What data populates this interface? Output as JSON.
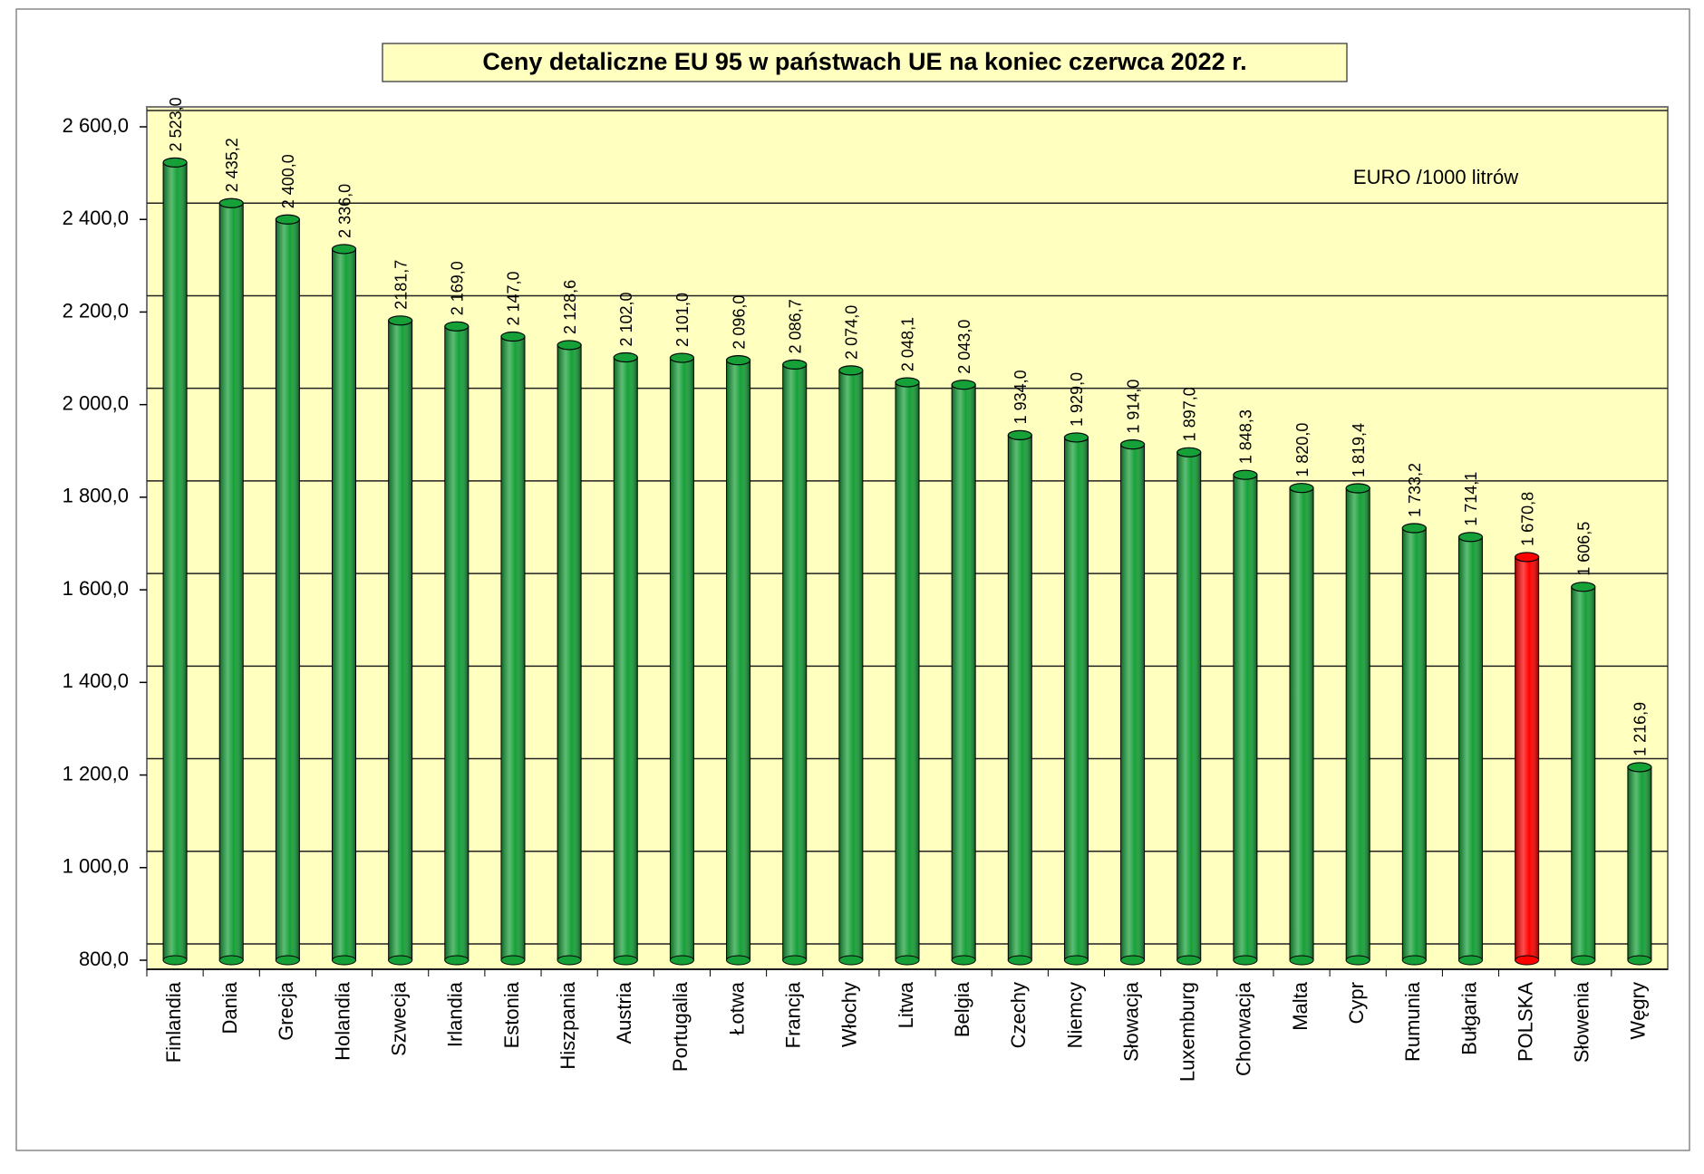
{
  "chart_data": {
    "type": "bar",
    "title": "Ceny detaliczne EU 95 w państwach UE  na  koniec czerwca 2022 r.",
    "annotation": "EURO /1000 litrów",
    "categories": [
      "Finlandia",
      "Dania",
      "Grecja",
      "Holandia",
      "Szwecja",
      "Irlandia",
      "Estonia",
      "Hiszpania",
      "Austria",
      "Portugalia",
      "Łotwa",
      "Francja",
      "Włochy",
      "Litwa",
      "Belgia",
      "Czechy",
      "Niemcy",
      "Słowacja",
      "Luxemburg",
      "Chorwacja",
      "Malta",
      "Cypr",
      "Rumunia",
      "Bułgaria",
      "POLSKA",
      "Słowenia",
      "Węgry"
    ],
    "values": [
      2523.0,
      2435.2,
      2400.0,
      2336.0,
      2181.7,
      2169.0,
      2147.0,
      2128.6,
      2102.0,
      2101.0,
      2096.0,
      2086.7,
      2074.0,
      2048.1,
      2043.0,
      1934.0,
      1929.0,
      1914.0,
      1897.0,
      1848.3,
      1820.0,
      1819.4,
      1733.2,
      1714.1,
      1670.8,
      1606.5,
      1216.9
    ],
    "value_labels": [
      "2 523,0",
      "2 435,2",
      "2 400,0",
      "2 336,0",
      "2181,7",
      "2 169,0",
      "2 147,0",
      "2 128,6",
      "2 102,0",
      "2 101,0",
      "2 096,0",
      "2 086,7",
      "2 074,0",
      "2 048,1",
      "2 043,0",
      "1 934,0",
      "1 929,0",
      "1 914,0",
      "1 897,0",
      "1 848,3",
      "1 820,0",
      "1 819,4",
      "1 733,2",
      "1 714,1",
      "1 670,8",
      "1 606,5",
      "1 216,9"
    ],
    "colors": [
      "#16a038",
      "#16a038",
      "#16a038",
      "#16a038",
      "#16a038",
      "#16a038",
      "#16a038",
      "#16a038",
      "#16a038",
      "#16a038",
      "#16a038",
      "#16a038",
      "#16a038",
      "#16a038",
      "#16a038",
      "#16a038",
      "#16a038",
      "#16a038",
      "#16a038",
      "#16a038",
      "#16a038",
      "#16a038",
      "#16a038",
      "#16a038",
      "#ff0000",
      "#16a038",
      "#16a038"
    ],
    "ylim": [
      800,
      2600
    ],
    "yticks": [
      {
        "value": 800,
        "label": "800,0"
      },
      {
        "value": 1000,
        "label": "1 000,0"
      },
      {
        "value": 1200,
        "label": "1 200,0"
      },
      {
        "value": 1400,
        "label": "1 400,0"
      },
      {
        "value": 1600,
        "label": "1 600,0"
      },
      {
        "value": 1800,
        "label": "1 800,0"
      },
      {
        "value": 2000,
        "label": "2 000,0"
      },
      {
        "value": 2200,
        "label": "2 200,0"
      },
      {
        "value": 2400,
        "label": "2 400,0"
      },
      {
        "value": 2600,
        "label": "2 600,0"
      }
    ],
    "grid": true
  }
}
